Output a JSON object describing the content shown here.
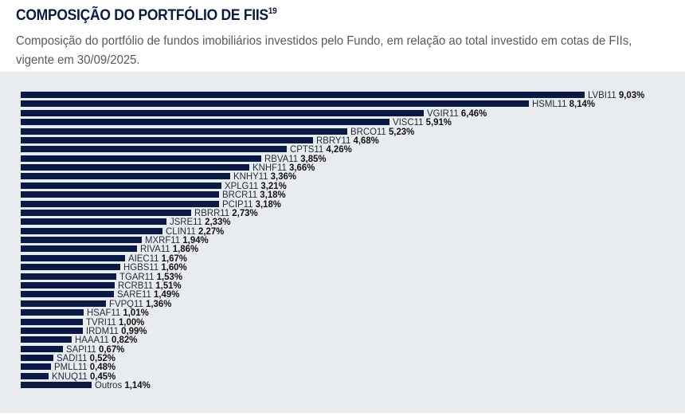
{
  "header": {
    "title": "COMPOSIÇÃO DO PORTFÓLIO DE FIIS",
    "title_sup": "19",
    "subtitle": "Composição do portfólio de fundos imobiliários investidos pelo Fundo, em relação ao total investido em cotas de FIIs, vigente em 30/09/2025."
  },
  "colors": {
    "bar": "#0b1a45",
    "panel": "#e9ecef",
    "title": "#0b1a3f"
  },
  "chart_data": {
    "type": "bar",
    "orientation": "horizontal",
    "title": "COMPOSIÇÃO DO PORTFÓLIO DE FIIS",
    "xlabel": "",
    "ylabel": "",
    "unit": "%",
    "grid": false,
    "legend": "none",
    "xlim": [
      0,
      9.03
    ],
    "categories": [
      "LVBI11",
      "HSML11",
      "VGIR11",
      "VISC11",
      "BRCO11",
      "RBRY11",
      "CPTS11",
      "RBVA11",
      "KNHF11",
      "KNHY11",
      "XPLG11",
      "BRCR11",
      "PCIP11",
      "RBRR11",
      "JSRE11",
      "CLIN11",
      "MXRF11",
      "RIVA11",
      "AIEC11",
      "HGBS11",
      "TGAR11",
      "RCRB11",
      "SARE11",
      "FVPQ11",
      "HSAF11",
      "TVRI11",
      "IRDM11",
      "HAAA11",
      "SAPI11",
      "SADI11",
      "PMLL11",
      "KNUQ11",
      "Outros"
    ],
    "values": [
      9.03,
      8.14,
      6.46,
      5.91,
      5.23,
      4.68,
      4.26,
      3.85,
      3.66,
      3.36,
      3.21,
      3.18,
      3.18,
      2.73,
      2.33,
      2.27,
      1.94,
      1.86,
      1.67,
      1.6,
      1.53,
      1.51,
      1.49,
      1.36,
      1.01,
      1.0,
      0.99,
      0.82,
      0.67,
      0.52,
      0.48,
      0.45,
      1.14
    ],
    "value_labels": [
      "9,03%",
      "8,14%",
      "6,46%",
      "5,91%",
      "5,23%",
      "4,68%",
      "4,26%",
      "3,85%",
      "3,66%",
      "3,36%",
      "3,21%",
      "3,18%",
      "3,18%",
      "2,73%",
      "2,33%",
      "2,27%",
      "1,94%",
      "1,86%",
      "1,67%",
      "1,60%",
      "1,53%",
      "1,51%",
      "1,49%",
      "1,36%",
      "1,01%",
      "1,00%",
      "0,99%",
      "0,82%",
      "0,67%",
      "0,52%",
      "0,48%",
      "0,45%",
      "1,14%"
    ]
  }
}
